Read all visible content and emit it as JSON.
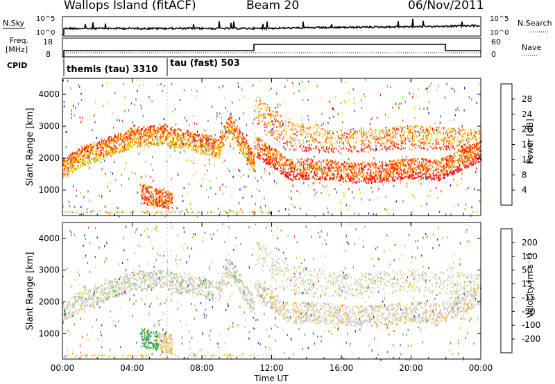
{
  "header": {
    "station": "Wallops Island (fitACF)",
    "beam": "Beam 20",
    "date": "06/Nov/2011"
  },
  "top_panels": {
    "nsky_label": "N.Sky",
    "nsearch_label": "N.Search",
    "freq_label_1": "Freq.",
    "freq_label_2": "[MHz]",
    "nave_label": "Nave",
    "cpid_label": "CPID",
    "nsky_ticks": [
      "10^5",
      "10^0"
    ],
    "nsearch_ticks": [
      "10^5",
      "10^0"
    ],
    "freq_ticks": [
      "18",
      "8"
    ],
    "nave_ticks": [
      "60",
      "0"
    ],
    "cpid_1": "themis (tau) 3310",
    "cpid_2": "tau (fast) 503"
  },
  "colors": {
    "power": [
      "#0000ff",
      "#1f4fbf",
      "#2f7f6f",
      "#3f9f3f",
      "#9fd040",
      "#ffd000",
      "#ff9d00",
      "#ff6a00",
      "#ff3000",
      "#ff0000"
    ],
    "velocity": [
      "#0a28c8",
      "#1e5fb4",
      "#2e8b57",
      "#3cb43c",
      "#8cdc50",
      "#c8c8c8",
      "#f5dc78",
      "#ffaa00",
      "#ff7800",
      "#ff3c00",
      "#ff0000"
    ]
  },
  "chart_data": [
    {
      "type": "heatmap",
      "title": "Power",
      "ylabel": "Slant Range [km]",
      "ylim": [
        200,
        4500
      ],
      "y_ticks": [
        "1000",
        "2000",
        "3000",
        "4000"
      ],
      "colorbar_label": "Power [dB]",
      "colorbar_ticks": [
        "4",
        "8",
        "12",
        "16",
        "20",
        "24",
        "28"
      ]
    },
    {
      "type": "heatmap",
      "title": "Velocity",
      "ylabel": "Slant Range [km]",
      "xlabel": "Time UT",
      "ylim": [
        200,
        4500
      ],
      "x_ticks": [
        "00:00",
        "04:00",
        "08:00",
        "12:00",
        "16:00",
        "20:00",
        "00:00"
      ],
      "y_ticks": [
        "1000",
        "2000",
        "3000",
        "4000"
      ],
      "colorbar_label": "Velocity [m s⁻¹]",
      "colorbar_ticks": [
        "200",
        "100",
        "50",
        "15",
        "-15",
        "-50",
        "-100",
        "-200"
      ]
    }
  ]
}
